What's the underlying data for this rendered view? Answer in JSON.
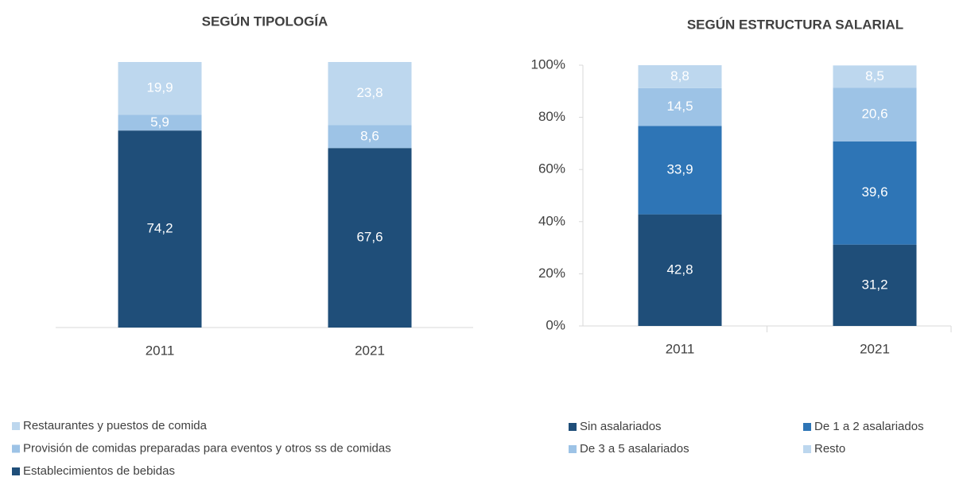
{
  "chart_data": [
    {
      "type": "bar",
      "stacked": true,
      "title": "SEGÚN TIPOLOGÍA",
      "categories": [
        "2011",
        "2021"
      ],
      "ylim": [
        0,
        100
      ],
      "series": [
        {
          "name": "Establecimientos de bebidas",
          "color": "#1f4e79",
          "values": [
            74.2,
            67.6
          ],
          "value_labels": [
            "74,2",
            "67,6"
          ]
        },
        {
          "name": "Provisión de comidas preparadas para eventos y otros ss de comidas",
          "color": "#9dc3e6",
          "values": [
            5.9,
            8.6
          ],
          "value_labels": [
            "5,9",
            "8,6"
          ]
        },
        {
          "name": "Restaurantes y puestos de comida",
          "color": "#bdd7ee",
          "values": [
            19.9,
            23.8
          ],
          "value_labels": [
            "19,9",
            "23,8"
          ]
        }
      ]
    },
    {
      "type": "bar",
      "stacked": true,
      "title": "SEGÚN ESTRUCTURA SALARIAL",
      "categories": [
        "2011",
        "2021"
      ],
      "ylim": [
        0,
        100
      ],
      "yticks": [
        {
          "value": 0,
          "label": "0%"
        },
        {
          "value": 20,
          "label": "20%"
        },
        {
          "value": 40,
          "label": "40%"
        },
        {
          "value": 60,
          "label": "60%"
        },
        {
          "value": 80,
          "label": "80%"
        },
        {
          "value": 100,
          "label": "100%"
        }
      ],
      "series": [
        {
          "name": "Sin asalariados",
          "color": "#1f4e79",
          "values": [
            42.8,
            31.2
          ],
          "value_labels": [
            "42,8",
            "31,2"
          ]
        },
        {
          "name": "De 1 a 2 asalariados",
          "color": "#2e75b6",
          "values": [
            33.9,
            39.6
          ],
          "value_labels": [
            "33,9",
            "39,6"
          ]
        },
        {
          "name": "De 3 a 5 asalariados",
          "color": "#9dc3e6",
          "values": [
            14.5,
            20.6
          ],
          "value_labels": [
            "14,5",
            "20,6"
          ]
        },
        {
          "name": "Resto",
          "color": "#bdd7ee",
          "values": [
            8.8,
            8.5
          ],
          "value_labels": [
            "8,8",
            "8,5"
          ]
        }
      ]
    }
  ]
}
